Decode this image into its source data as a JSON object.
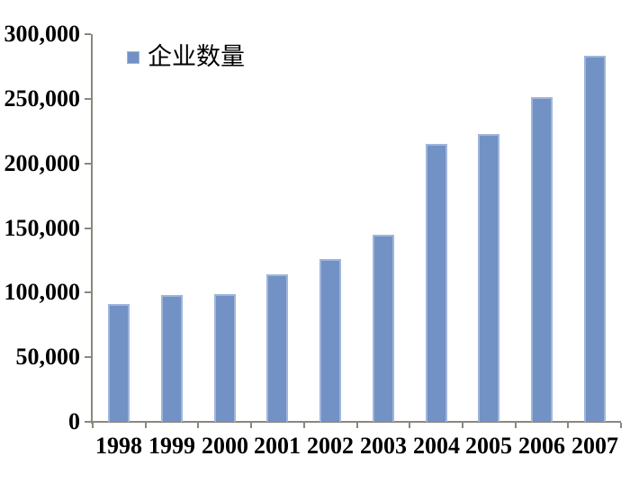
{
  "chart_data": {
    "type": "bar",
    "legend": "企业数量",
    "categories": [
      "1998",
      "1999",
      "2000",
      "2001",
      "2002",
      "2003",
      "2004",
      "2005",
      "2006",
      "2007"
    ],
    "values": [
      91000,
      98000,
      99000,
      114000,
      126000,
      145000,
      215000,
      223000,
      251000,
      283000
    ],
    "ylim": [
      0,
      300000
    ],
    "ytick_step": 50000,
    "ytick_labels": [
      "0",
      "50,000",
      "100,000",
      "150,000",
      "200,000",
      "250,000",
      "300,000"
    ],
    "xlabel": "",
    "ylabel": "",
    "grid": false,
    "legend_position": "inside-top-left",
    "colors": {
      "bar_fill": "#7291C4",
      "bar_border": "#A0B5DB",
      "axis": "#8C8680",
      "text": "#000000",
      "background": "#ffffff"
    }
  }
}
